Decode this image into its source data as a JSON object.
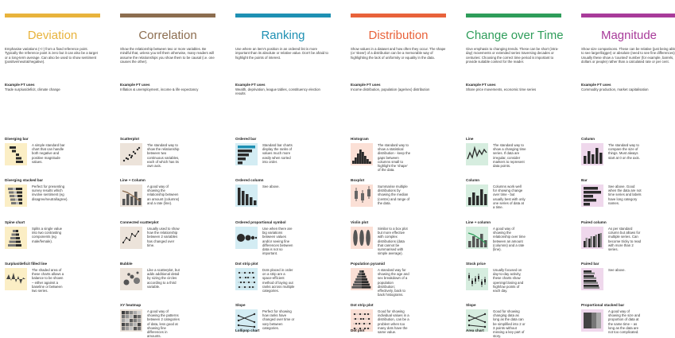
{
  "columns": [
    {
      "title": "Deviation",
      "color": "#e8b33c",
      "tint": "#fbeec5",
      "description": "Emphasise variations (+/-) from a fixed reference point. Typically the reference point is zero but it can also be a target or a long-term average. Can also be used to show sentiment (positive/neutral/negative).",
      "uses_heading": "Example FT uses",
      "uses": "Trade surplus/deficit, climate change",
      "entries": [
        {
          "name": "Diverging bar",
          "text": "A simple standard bar chart that can handle both negative and positive magnitude values.",
          "icon": "diverging-bar-icon"
        },
        {
          "name": "Diverging stacked bar",
          "text": "Perfect for presenting survey results which involve sentiment (eg disagree/neutral/agree).",
          "icon": "diverging-stacked-bar-icon"
        },
        {
          "name": "Spine chart",
          "text": "Splits a single value into two contrasting components (eg male/female).",
          "icon": "spine-chart-icon"
        },
        {
          "name": "Surplus/deficit filled line",
          "text": "The shaded area of these charts allows a balance to be shown – either against a baseline or between two series.",
          "icon": "surplus-deficit-line-icon"
        }
      ]
    },
    {
      "title": "Correlation",
      "color": "#8c6d4f",
      "tint": "#ece3da",
      "description": "Show the relationship between two or more variables. Be mindful that, unless you tell them otherwise, many readers will assume the relationships you show them to be causal (i.e. one causes the other).",
      "uses_heading": "Example FT uses",
      "uses": "Inflation & unemployment, income & life expectancy",
      "entries": [
        {
          "name": "Scatterplot",
          "text": "The standard way to show the relationship between two continuous variables, each of which has its own axis.",
          "icon": "scatterplot-icon"
        },
        {
          "name": "Line + Column",
          "text": "A good way of showing the relationship between an amount (columns) and a rate (line).",
          "icon": "line-column-icon"
        },
        {
          "name": "Connected scatterplot",
          "text": "Usually used to show how the relationship between 2 variables has changed over time.",
          "icon": "connected-scatterplot-icon"
        },
        {
          "name": "Bubble",
          "text": "Like a scatterplot, but adds additional detail by sizing the circles according to a third variable.",
          "icon": "bubble-icon"
        },
        {
          "name": "XY heatmap",
          "text": "A good way of showing the patterns between 2 categories of data, less good at showing fine differences in amounts.",
          "icon": "xy-heatmap-icon"
        }
      ]
    },
    {
      "title": "Ranking",
      "color": "#1e90b3",
      "tint": "#d3ecf3",
      "description": "Use where an item's position in an ordered list is more important than its absolute or relative value. Don't be afraid to highlight the points of interest.",
      "uses_heading": "Example FT uses",
      "uses": "Wealth, deprivation, league tables, constituency election results",
      "entries": [
        {
          "name": "Ordered bar",
          "text": "Standard bar charts display the ranks of values much more easily when sorted into order.",
          "icon": "ordered-bar-icon"
        },
        {
          "name": "Ordered column",
          "text": "See above.",
          "icon": "ordered-column-icon"
        },
        {
          "name": "Ordered proportional symbol",
          "text": "Use when there are big variations between values and/or seeing fine differences between data is not so important.",
          "icon": "ordered-proportional-symbol-icon"
        },
        {
          "name": "Dot strip plot",
          "text": "Dots placed in order on a strip are a space-efficient method of laying out ranks across multiple categories.",
          "icon": "dot-strip-plot-icon"
        },
        {
          "name": "Slope",
          "text": "Perfect for showing how ranks have changed over time or vary between categories.",
          "icon": "slope-icon"
        },
        {
          "name": "Lollipop chart",
          "text": "",
          "icon": ""
        }
      ]
    },
    {
      "title": "Distribution",
      "color": "#e8623a",
      "tint": "#fbe0d6",
      "description": "Show values in a dataset and how often they occur. The shape (or 'skew') of a distribution can be a memorable way of highlighting the lack of uniformity or equality in the data.",
      "uses_heading": "Example FT uses",
      "uses": "Income distribution, population (age/sex) distribution",
      "entries": [
        {
          "name": "Histogram",
          "text": "The standard way to show a statistical distribution - keep the gaps between columns small to highlight the 'shape' of the data.",
          "icon": "histogram-icon"
        },
        {
          "name": "Boxplot",
          "text": "Summarise multiple distributions by showing the median (centre) and range of the data.",
          "icon": "boxplot-icon"
        },
        {
          "name": "Violin plot",
          "text": "Similar to a box plot but more effective with complex distributions (data that cannot be summarised with simple average).",
          "icon": "violin-plot-icon"
        },
        {
          "name": "Population pyramid",
          "text": "A standard way for showing the age and sex breakdown of a population distribution; effectively, back to back histograms.",
          "icon": "population-pyramid-icon"
        },
        {
          "name": "Dot strip plot",
          "text": "Good for showing individual values in a distribution, can be a problem when too many dots have the same value.",
          "icon": "dot-strip-plot-icon"
        },
        {
          "name": "Dot plot",
          "text": "",
          "icon": ""
        }
      ]
    },
    {
      "title": "Change over Time",
      "color": "#2e9d5a",
      "tint": "#d6eddf",
      "description": "Give emphasis to changing trends. These can be short (intra-day) movements or extended series traversing decades or centuries: Choosing the correct time period is important to provide suitable context for the reader.",
      "uses_heading": "Example FT uses",
      "uses": "Share price movements, economic time series",
      "entries": [
        {
          "name": "Line",
          "text": "The standard way to show a changing time series. If data are irregular, consider markers to represent data points.",
          "icon": "line-icon"
        },
        {
          "name": "Column",
          "text": "Columns work well for showing change over time - but usually best with only one series of data at a time.",
          "icon": "column-icon"
        },
        {
          "name": "Line + column",
          "text": "A good way of showing the relationship over time between an amount (columns) and a rate (line).",
          "icon": "line-column-icon"
        },
        {
          "name": "Stock price",
          "text": "Usually focused on day-to-day activity, these charts show opening/closing and high/low points of each day.",
          "icon": "stock-price-icon"
        },
        {
          "name": "Slope",
          "text": "Good for showing changing data as long as the data can be simplified into 2 or 3 points without missing a key part of story.",
          "icon": "slope-icon"
        },
        {
          "name": "Area chart",
          "text": "",
          "icon": ""
        }
      ]
    },
    {
      "title": "Magnitude",
      "color": "#a83b9a",
      "tint": "#efd8ec",
      "description": "Show size comparisons. These can be relative (just being able to see larger/bigger) or absolute (need to see fine differences). Usually these show a 'counted' number (for example, barrels, dollars or people) rather than a calculated rate or per cent.",
      "uses_heading": "Example FT uses",
      "uses": "Commodity production, market capitalisation",
      "entries": [
        {
          "name": "Column",
          "text": "The standard way to compare the size of things. Must always start at 0 on the axis.",
          "icon": "column-icon"
        },
        {
          "name": "Bar",
          "text": "See above. Good when the data are not time series and labels have long category names.",
          "icon": "bar-icon"
        },
        {
          "name": "Paired column",
          "text": "As per standard column but allows for multiple series. Can become tricky to read with more than 2 series.",
          "icon": "paired-column-icon"
        },
        {
          "name": "Paired bar",
          "text": "See above.",
          "icon": "paired-bar-icon"
        },
        {
          "name": "Proportional stacked bar",
          "text": "A good way of showing the size and proportion of data at the same time – as long as the data are not too complicated.",
          "icon": "proportional-stacked-bar-icon"
        }
      ]
    }
  ]
}
